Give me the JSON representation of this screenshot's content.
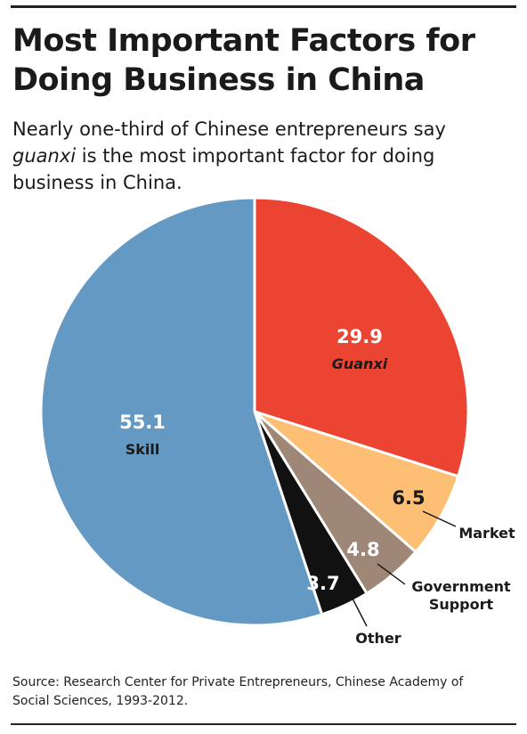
{
  "header": {
    "title_line1": "Most Important Factors for",
    "title_line2": "Doing Business in China",
    "subtitle_line1": "Nearly one-third of Chinese entrepreneurs say",
    "subtitle_italic": "guanxi",
    "subtitle_line2_rest": " is the most important factor for doing",
    "subtitle_line3": "business in China."
  },
  "chart_data": {
    "type": "pie",
    "title": "Most Important Factors for Doing Business in China",
    "slices": [
      {
        "label": "Guanxi",
        "value": 29.9,
        "display": "29.9",
        "color": "#ec4433",
        "label_color": "#1a1a1a",
        "value_color": "#ffffff",
        "italic": true
      },
      {
        "label": "Market",
        "value": 6.5,
        "display": "6.5",
        "color": "#fdbf74",
        "label_color": "#1a1a1a",
        "value_color": "#1a1a1a",
        "italic": false
      },
      {
        "label": "Government Support",
        "label_lines": [
          "Government",
          "Support"
        ],
        "value": 4.8,
        "display": "4.8",
        "color": "#9e8776",
        "label_color": "#1a1a1a",
        "value_color": "#ffffff",
        "italic": false
      },
      {
        "label": "Other",
        "value": 3.7,
        "display": "3.7",
        "color": "#111111",
        "label_color": "#1a1a1a",
        "value_color": "#ffffff",
        "italic": false
      },
      {
        "label": "Skill",
        "value": 55.1,
        "display": "55.1",
        "color": "#6499c4",
        "label_color": "#1a1a1a",
        "value_color": "#ffffff",
        "italic": false
      }
    ],
    "start": "12 o'clock",
    "direction": "clockwise"
  },
  "footer": {
    "source_line1": "Source: Research Center for Private Entrepreneurs, Chinese Academy of",
    "source_line2": "Social Sciences, 1993-2012."
  }
}
